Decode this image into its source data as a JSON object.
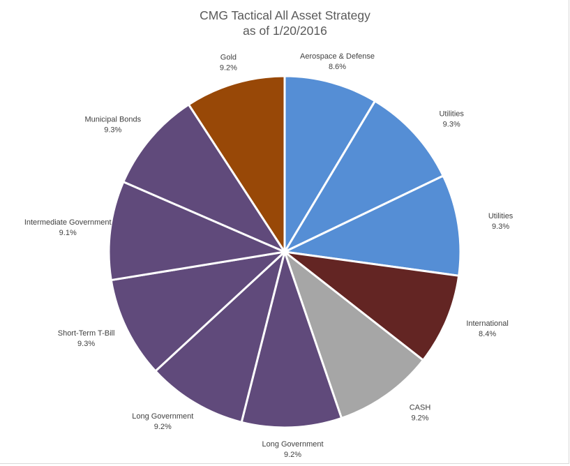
{
  "chart_data": {
    "type": "pie",
    "title": "CMG Tactical All Asset Strategy",
    "subtitle": "as of 1/20/2016",
    "slices": [
      {
        "label": "Aerospace & Defense",
        "value": 8.6,
        "display": "8.6%",
        "color": "#558ED5"
      },
      {
        "label": "Utilities",
        "value": 9.3,
        "display": "9.3%",
        "color": "#558ED5"
      },
      {
        "label": "Utilities",
        "value": 9.3,
        "display": "9.3%",
        "color": "#558ED5"
      },
      {
        "label": "International",
        "value": 8.4,
        "display": "8.4%",
        "color": "#632523"
      },
      {
        "label": "CASH",
        "value": 9.2,
        "display": "9.2%",
        "color": "#A6A6A6"
      },
      {
        "label": "Long Government",
        "value": 9.2,
        "display": "9.2%",
        "color": "#604A7B"
      },
      {
        "label": "Long Government",
        "value": 9.2,
        "display": "9.2%",
        "color": "#604A7B"
      },
      {
        "label": "Short-Term T-Bill",
        "value": 9.3,
        "display": "9.3%",
        "color": "#604A7B"
      },
      {
        "label": "Intermediate Government",
        "value": 9.1,
        "display": "9.1%",
        "color": "#604A7B"
      },
      {
        "label": "Municipal Bonds",
        "value": 9.3,
        "display": "9.3%",
        "color": "#604A7B"
      },
      {
        "label": "Gold",
        "value": 9.2,
        "display": "9.2%",
        "color": "#984807"
      }
    ],
    "legend": "none"
  }
}
